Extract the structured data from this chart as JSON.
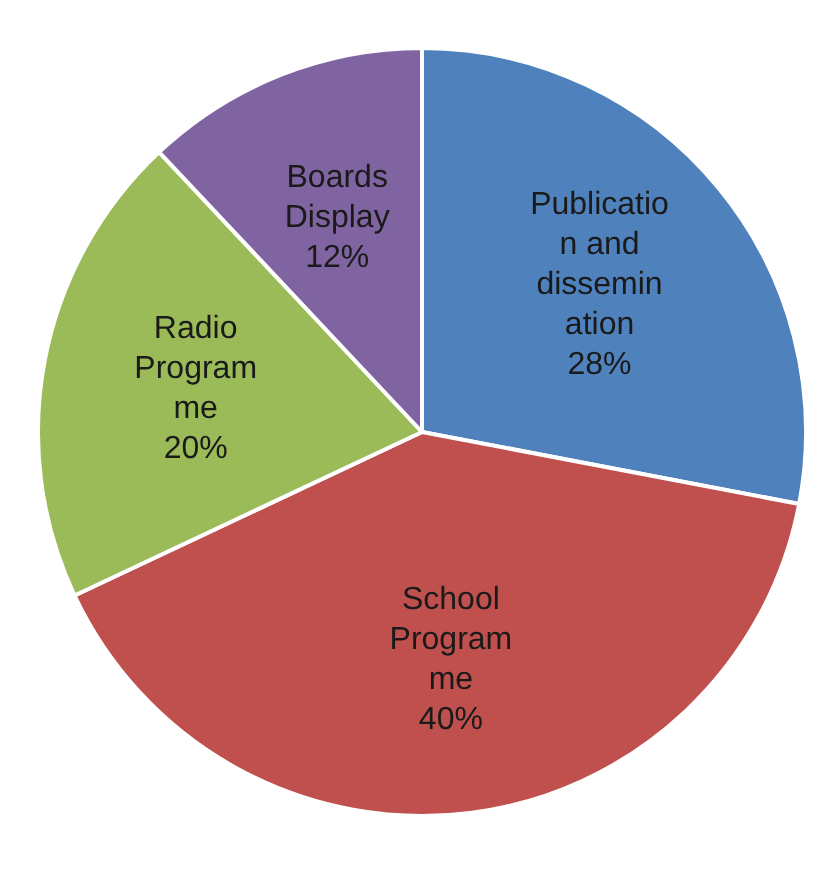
{
  "chart_data": {
    "type": "pie",
    "categories": [
      "Publication and dissemination",
      "School Programme",
      "Radio Programme",
      "Boards Display"
    ],
    "values": [
      28,
      40,
      20,
      12
    ],
    "value_labels": [
      "28%",
      "40%",
      "20%",
      "12%"
    ],
    "colors": [
      "#4f81bd",
      "#c0504d",
      "#9bbb59",
      "#8064a2"
    ],
    "legend": false
  }
}
